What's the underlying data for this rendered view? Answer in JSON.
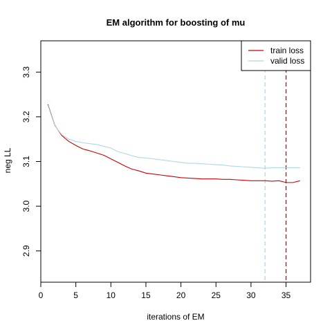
{
  "chart_data": {
    "type": "line",
    "title": "EM algorithm for boosting of mu",
    "xlabel": "iterations of EM",
    "ylabel": "neg LL",
    "xlim": [
      0,
      38.5
    ],
    "ylim": [
      2.83,
      3.37
    ],
    "xticks": [
      0,
      5,
      10,
      15,
      20,
      25,
      30,
      35
    ],
    "yticks": [
      2.9,
      3.0,
      3.1,
      3.2,
      3.3
    ],
    "legend_position": "top-right",
    "series": [
      {
        "name": "train loss",
        "color": "#cc0000",
        "x": [
          1,
          2,
          3,
          4,
          5,
          6,
          7,
          8,
          9,
          10,
          11,
          12,
          13,
          14,
          15,
          16,
          17,
          18,
          19,
          20,
          21,
          22,
          23,
          24,
          25,
          26,
          27,
          28,
          29,
          30,
          31,
          32,
          33,
          34,
          35,
          36,
          37
        ],
        "values": [
          3.228,
          3.181,
          3.158,
          3.145,
          3.136,
          3.128,
          3.124,
          3.119,
          3.114,
          3.106,
          3.098,
          3.09,
          3.083,
          3.079,
          3.074,
          3.072,
          3.07,
          3.068,
          3.066,
          3.064,
          3.063,
          3.062,
          3.061,
          3.061,
          3.061,
          3.06,
          3.06,
          3.059,
          3.058,
          3.057,
          3.057,
          3.057,
          3.056,
          3.057,
          3.053,
          3.053,
          3.057
        ]
      },
      {
        "name": "valid loss",
        "color": "#add8e6",
        "x": [
          1,
          2,
          3,
          4,
          5,
          6,
          7,
          8,
          9,
          10,
          11,
          12,
          13,
          14,
          15,
          16,
          17,
          18,
          19,
          20,
          21,
          22,
          23,
          24,
          25,
          26,
          27,
          28,
          29,
          30,
          31,
          32,
          33,
          34,
          35,
          36,
          37
        ],
        "values": [
          3.226,
          3.18,
          3.16,
          3.15,
          3.145,
          3.142,
          3.14,
          3.138,
          3.134,
          3.13,
          3.122,
          3.118,
          3.113,
          3.109,
          3.108,
          3.106,
          3.104,
          3.102,
          3.1,
          3.098,
          3.096,
          3.096,
          3.095,
          3.094,
          3.093,
          3.092,
          3.09,
          3.089,
          3.088,
          3.087,
          3.086,
          3.085,
          3.086,
          3.086,
          3.086,
          3.086,
          3.086
        ]
      }
    ],
    "vlines": [
      {
        "x": 32,
        "color": "#add8e6",
        "style": "dashed"
      },
      {
        "x": 35,
        "color": "#cc0000",
        "style": "dashed"
      }
    ]
  }
}
